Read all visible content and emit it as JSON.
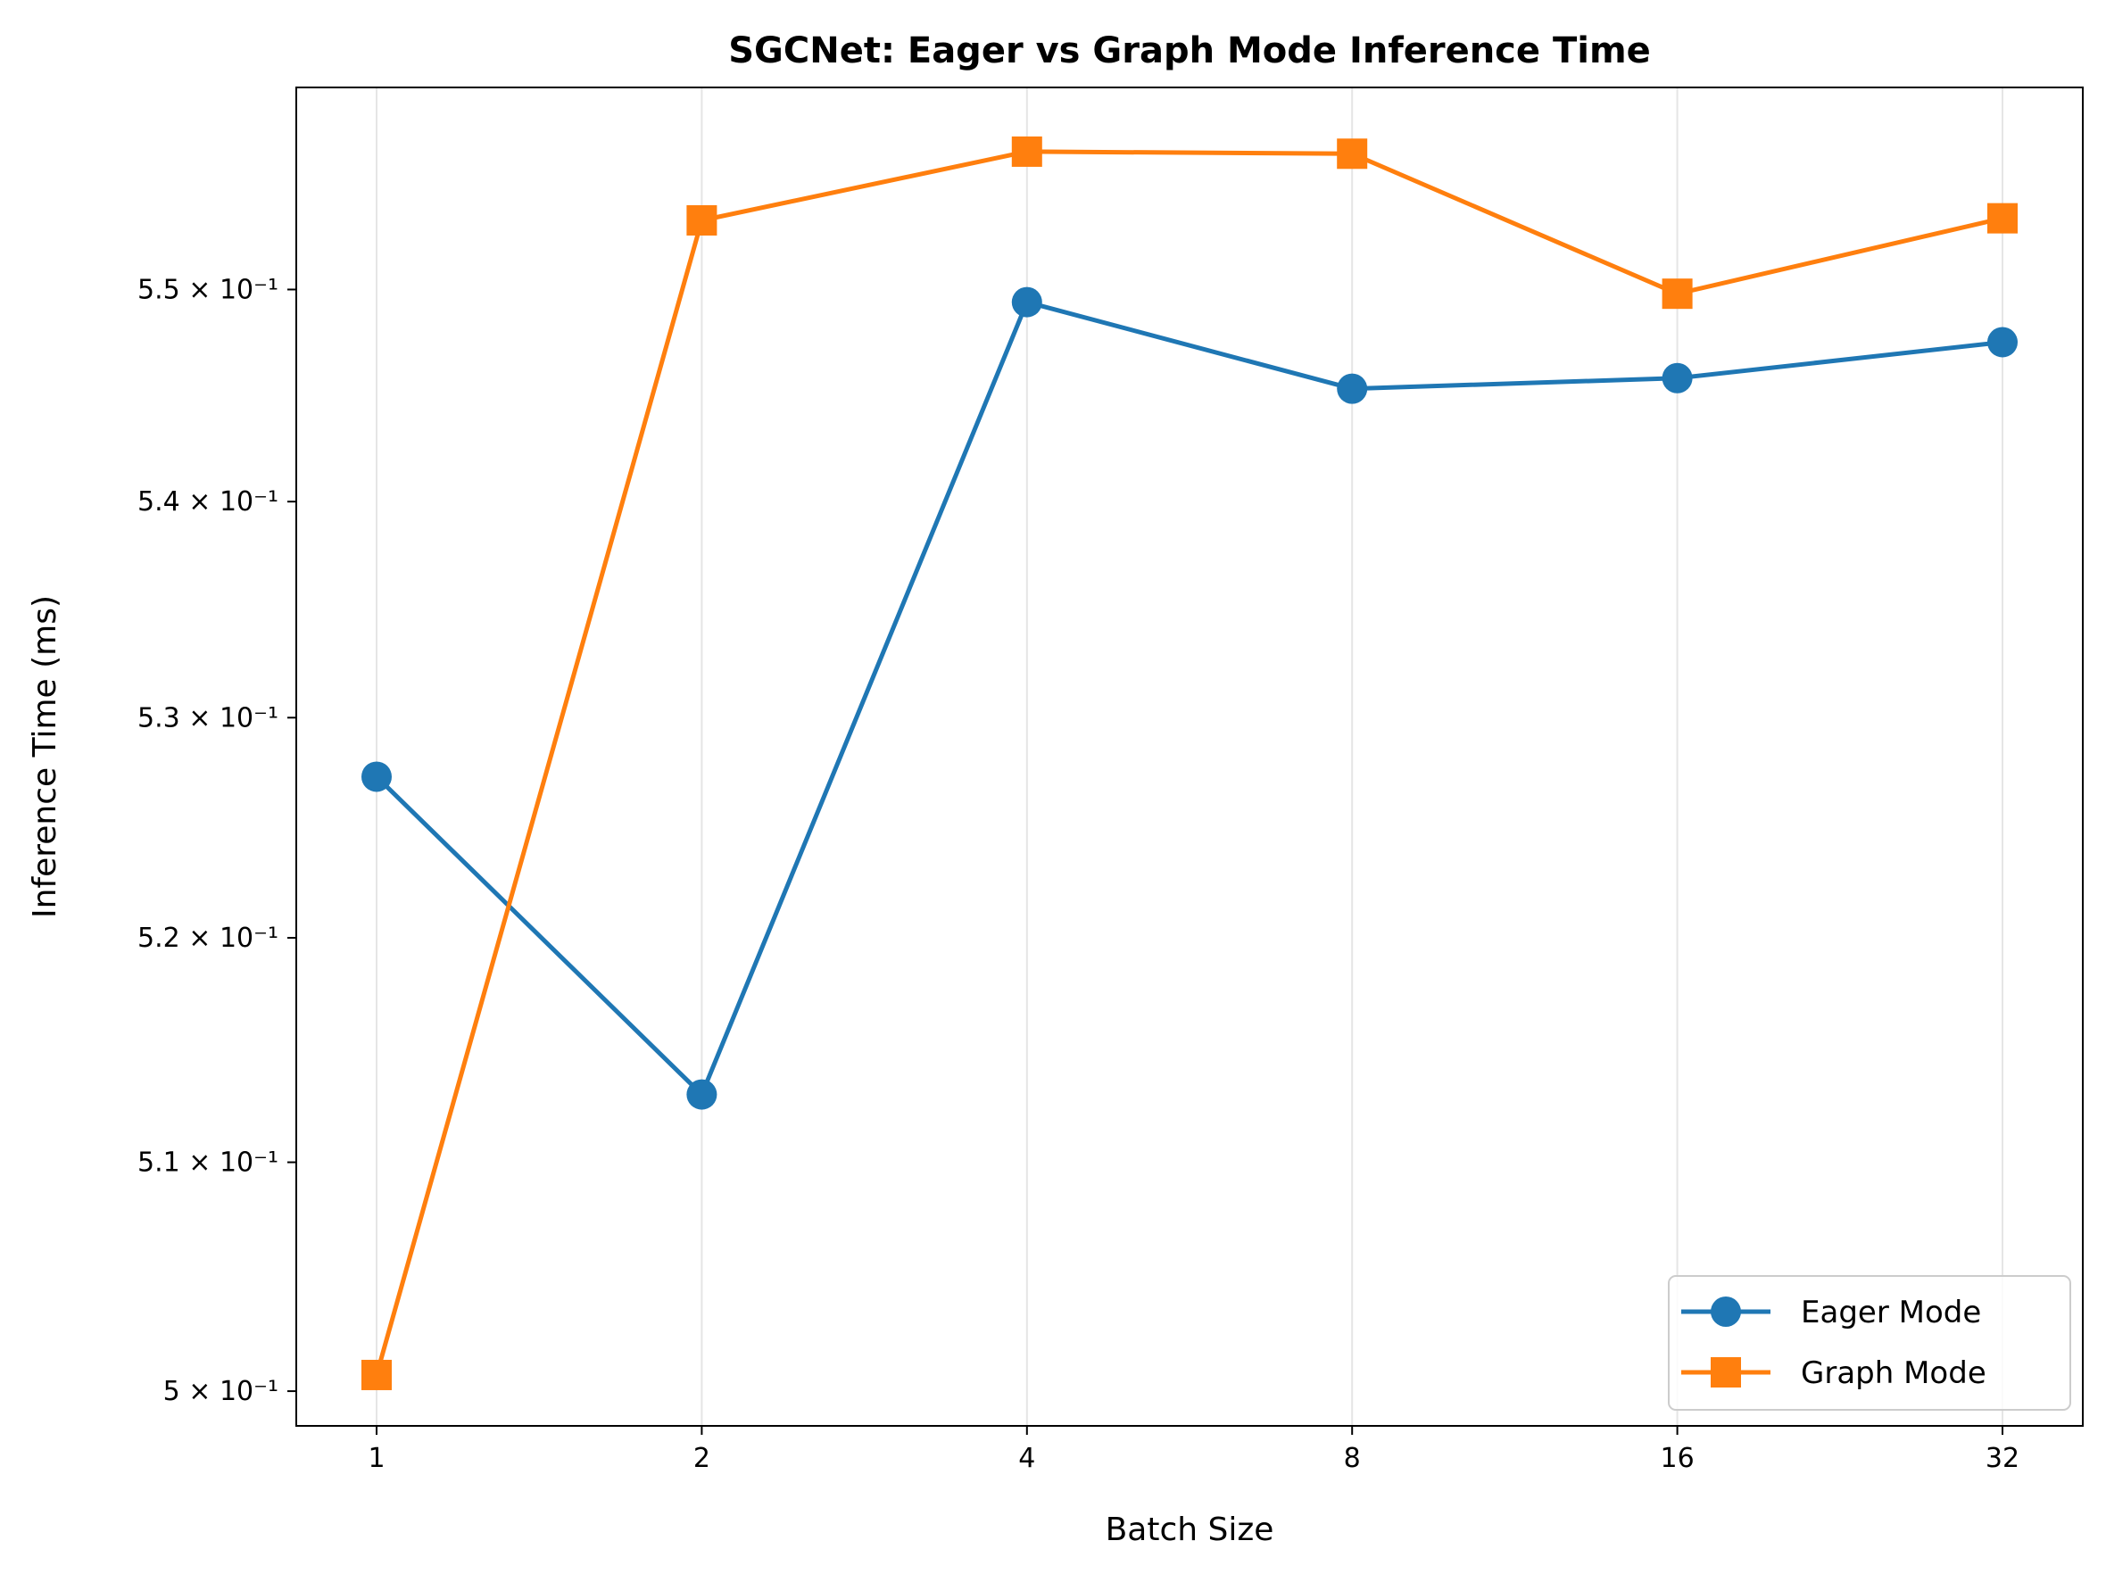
{
  "chart_data": {
    "type": "line",
    "title": "SGCNet: Eager vs Graph Mode Inference Time",
    "xlabel": "Batch Size",
    "ylabel": "Inference Time (ms)",
    "x_scale": "log2",
    "y_scale": "log",
    "categories": [
      "1",
      "2",
      "4",
      "8",
      "16",
      "32"
    ],
    "x": [
      1,
      2,
      4,
      8,
      16,
      32
    ],
    "ylim": [
      0.4985,
      0.5597
    ],
    "y_ticks": [
      {
        "value": 0.5,
        "label": "5 × 10⁻¹"
      },
      {
        "value": 0.51,
        "label": "5.1 × 10⁻¹"
      },
      {
        "value": 0.52,
        "label": "5.2 × 10⁻¹"
      },
      {
        "value": 0.53,
        "label": "5.3 × 10⁻¹"
      },
      {
        "value": 0.54,
        "label": "5.4 × 10⁻¹"
      },
      {
        "value": 0.55,
        "label": "5.5 × 10⁻¹"
      }
    ],
    "grid": "vertical",
    "legend_position": "lower-right",
    "series": [
      {
        "name": "Eager Mode",
        "color": "#1f77b4",
        "marker": "circle",
        "values": [
          0.5273,
          0.513,
          0.5494,
          0.5453,
          0.5458,
          0.5475
        ]
      },
      {
        "name": "Graph Mode",
        "color": "#ff7f0e",
        "marker": "square",
        "values": [
          0.5007,
          0.5533,
          0.5566,
          0.5565,
          0.5498,
          0.5534
        ]
      }
    ]
  }
}
